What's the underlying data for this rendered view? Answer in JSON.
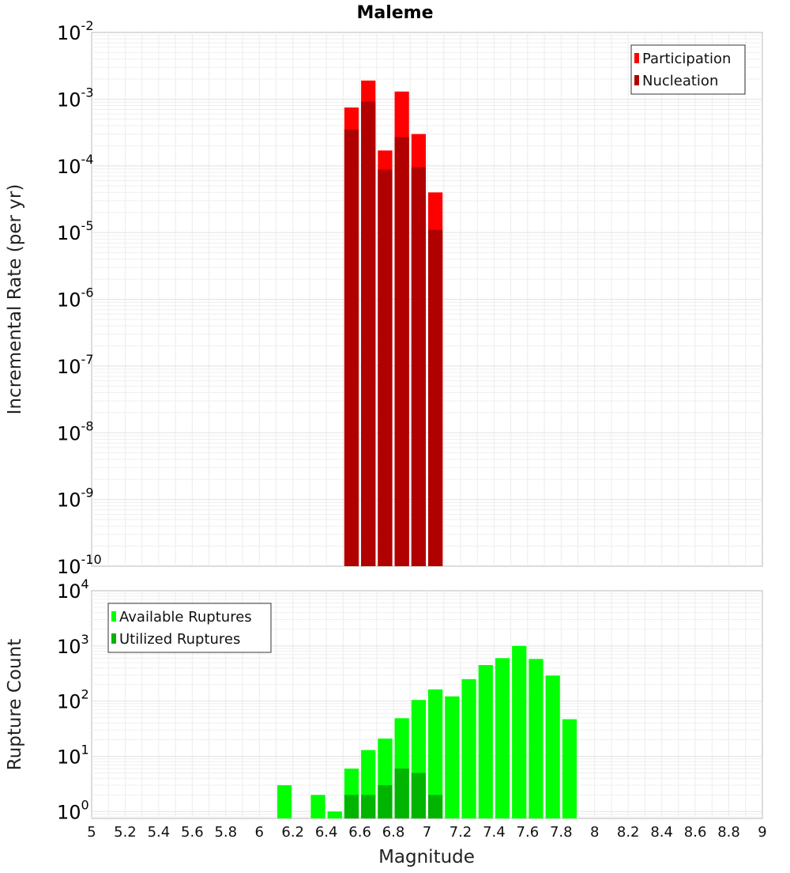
{
  "title": "Maleme",
  "xlabel": "Magnitude",
  "xticks": [
    "5",
    "5.2",
    "5.4",
    "5.6",
    "5.8",
    "6",
    "6.2",
    "6.4",
    "6.6",
    "6.8",
    "7",
    "7.2",
    "7.4",
    "7.6",
    "7.8",
    "8",
    "8.2",
    "8.4",
    "8.6",
    "8.8",
    "9"
  ],
  "chart_data": [
    {
      "type": "bar",
      "title": "Maleme",
      "ylabel": "Incremental Rate (per yr)",
      "yscale": "log",
      "ylim": [
        1e-10,
        0.01
      ],
      "xlim": [
        5,
        9
      ],
      "bin_width": 0.1,
      "grid": true,
      "legend_position": "top-right",
      "legend": [
        "Participation",
        "Nucleation"
      ],
      "colors": {
        "Participation": "#ff0000",
        "Nucleation": "#b00000"
      },
      "yticks": [
        {
          "base": "10",
          "exp": "-2"
        },
        {
          "base": "10",
          "exp": "-3"
        },
        {
          "base": "10",
          "exp": "-4"
        },
        {
          "base": "10",
          "exp": "-5"
        },
        {
          "base": "10",
          "exp": "-6"
        },
        {
          "base": "10",
          "exp": "-7"
        },
        {
          "base": "10",
          "exp": "-8"
        },
        {
          "base": "10",
          "exp": "-9"
        },
        {
          "base": "10",
          "exp": "-10"
        }
      ],
      "x": [
        6.55,
        6.65,
        6.75,
        6.85,
        6.95,
        7.05
      ],
      "series": [
        {
          "name": "Participation",
          "values": [
            0.00075,
            0.0019,
            0.00017,
            0.0013,
            0.0003,
            4e-05
          ]
        },
        {
          "name": "Nucleation",
          "values": [
            0.00035,
            0.00092,
            8.8e-05,
            0.00027,
            9.5e-05,
            1.1e-05
          ]
        }
      ]
    },
    {
      "type": "bar",
      "ylabel": "Rupture Count",
      "yscale": "log",
      "ylim": [
        0.75,
        10000
      ],
      "xlim": [
        5,
        9
      ],
      "bin_width": 0.1,
      "grid": true,
      "legend_position": "top-left",
      "legend": [
        "Available Ruptures",
        "Utilized Ruptures"
      ],
      "colors": {
        "Available Ruptures": "#00ff00",
        "Utilized Ruptures": "#00b400"
      },
      "yticks": [
        {
          "base": "10",
          "exp": "4"
        },
        {
          "base": "10",
          "exp": "3"
        },
        {
          "base": "10",
          "exp": "2"
        },
        {
          "base": "10",
          "exp": "1"
        },
        {
          "base": "10",
          "exp": "0"
        }
      ],
      "x": [
        6.15,
        6.35,
        6.45,
        6.55,
        6.65,
        6.75,
        6.85,
        6.95,
        7.05,
        7.15,
        7.25,
        7.35,
        7.45,
        7.55,
        7.65,
        7.75,
        7.85
      ],
      "series": [
        {
          "name": "Available Ruptures",
          "values": [
            3,
            2,
            1,
            6,
            13,
            21,
            49,
            105,
            163,
            122,
            250,
            450,
            600,
            1000,
            580,
            290,
            47
          ]
        },
        {
          "name": "Utilized Ruptures",
          "values": [
            0,
            0,
            0,
            2,
            2,
            3,
            6,
            5,
            2,
            0,
            0,
            0,
            0,
            0,
            0,
            0,
            0
          ]
        }
      ]
    }
  ]
}
